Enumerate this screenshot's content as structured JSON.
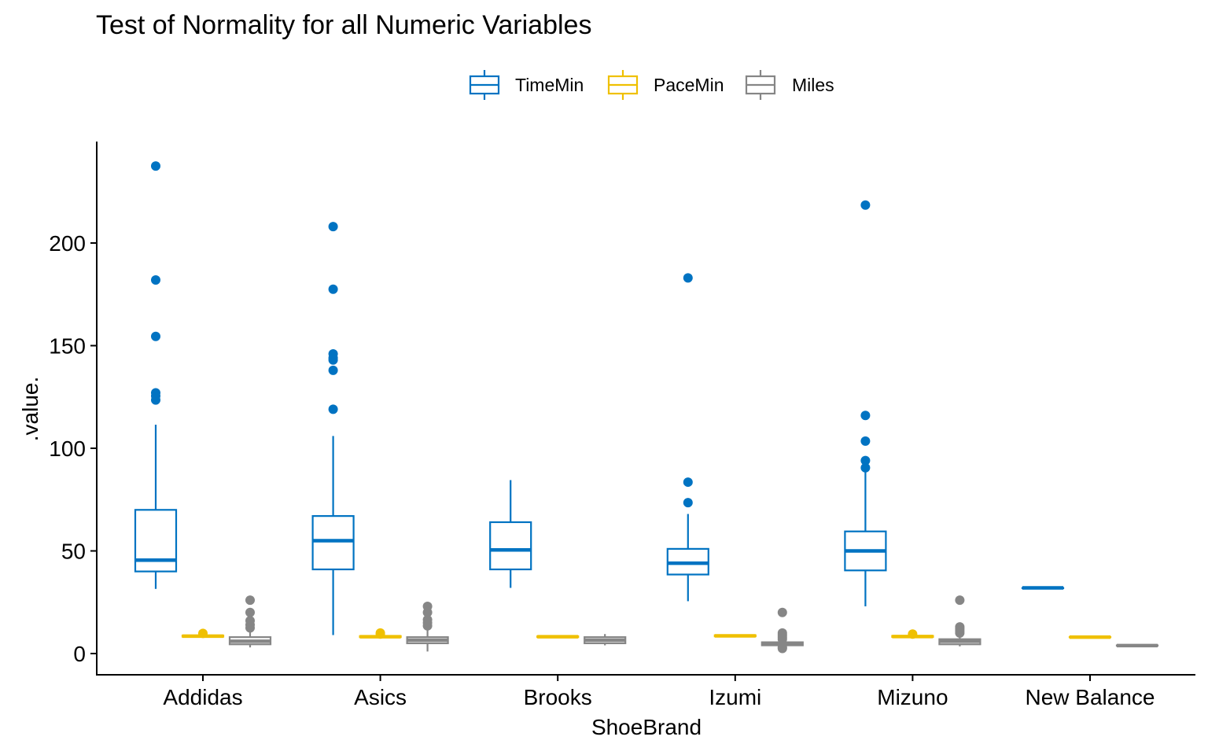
{
  "chart_data": {
    "type": "boxplot",
    "title": "Test of Normality for all Numeric Variables",
    "xlabel": "ShoeBrand",
    "ylabel": ".value.",
    "ylim": [
      -10,
      248
    ],
    "yticks": [
      0,
      50,
      100,
      150,
      200
    ],
    "categories": [
      "Addidas",
      "Asics",
      "Brooks",
      "Izumi",
      "Mizuno",
      "New Balance"
    ],
    "legend_position": "top",
    "series": [
      {
        "name": "TimeMin",
        "color": "#0073C2",
        "boxes": [
          {
            "low": 31.5,
            "q1": 40,
            "median": 45.5,
            "q3": 70,
            "high": 111.5,
            "outliers": [
              123.5,
              125.5,
              127,
              154.5,
              182,
              237.5
            ]
          },
          {
            "low": 9,
            "q1": 41,
            "median": 55,
            "q3": 67,
            "high": 106,
            "outliers": [
              119,
              138,
              143,
              144,
              146,
              177.5,
              208
            ]
          },
          {
            "low": 32,
            "q1": 41,
            "median": 50.5,
            "q3": 64,
            "high": 84.5,
            "outliers": []
          },
          {
            "low": 25.5,
            "q1": 38.5,
            "median": 44,
            "q3": 51,
            "high": 68,
            "outliers": [
              73.5,
              83.5,
              183
            ]
          },
          {
            "low": 23,
            "q1": 40.5,
            "median": 50,
            "q3": 59.5,
            "high": 88.5,
            "outliers": [
              90.5,
              94,
              103.5,
              116,
              218.5
            ]
          },
          {
            "low": 32,
            "q1": 32,
            "median": 32,
            "q3": 32,
            "high": 32,
            "outliers": []
          }
        ]
      },
      {
        "name": "PaceMin",
        "color": "#EFC000",
        "boxes": [
          {
            "low": 8,
            "q1": 8.2,
            "median": 8.5,
            "q3": 8.8,
            "high": 9.2,
            "outliers": [
              9.8
            ]
          },
          {
            "low": 8,
            "q1": 8.0,
            "median": 8.2,
            "q3": 8.5,
            "high": 9.0,
            "outliers": [
              9.5,
              10.0
            ]
          },
          {
            "low": 8,
            "q1": 8.0,
            "median": 8.2,
            "q3": 8.4,
            "high": 8.6,
            "outliers": []
          },
          {
            "low": 8.2,
            "q1": 8.4,
            "median": 8.6,
            "q3": 8.9,
            "high": 9.1,
            "outliers": []
          },
          {
            "low": 8,
            "q1": 8.1,
            "median": 8.3,
            "q3": 8.6,
            "high": 9.0,
            "outliers": [
              9.5
            ]
          },
          {
            "low": 7.9,
            "q1": 7.9,
            "median": 8.0,
            "q3": 8.1,
            "high": 8.1,
            "outliers": []
          }
        ]
      },
      {
        "name": "Miles",
        "color": "#868686",
        "boxes": [
          {
            "low": 3,
            "q1": 4.5,
            "median": 6,
            "q3": 8,
            "high": 11,
            "outliers": [
              12.5,
              14,
              16,
              20,
              26
            ]
          },
          {
            "low": 1,
            "q1": 5,
            "median": 6.5,
            "q3": 8,
            "high": 12,
            "outliers": [
              13.5,
              15,
              16.5,
              20,
              23
            ]
          },
          {
            "low": 4,
            "q1": 5,
            "median": 6.5,
            "q3": 8,
            "high": 9.5,
            "outliers": []
          },
          {
            "low": 3,
            "q1": 4,
            "median": 5,
            "q3": 5.5,
            "high": 6.5,
            "outliers": [
              2.5,
              3,
              7,
              8,
              9,
              10,
              20
            ]
          },
          {
            "low": 3.5,
            "q1": 4.5,
            "median": 6,
            "q3": 7,
            "high": 9,
            "outliers": [
              10,
              11,
              12,
              13,
              26
            ]
          },
          {
            "low": 3.5,
            "q1": 3.8,
            "median": 3.9,
            "q3": 4.0,
            "high": 4.2,
            "outliers": []
          }
        ]
      }
    ]
  }
}
